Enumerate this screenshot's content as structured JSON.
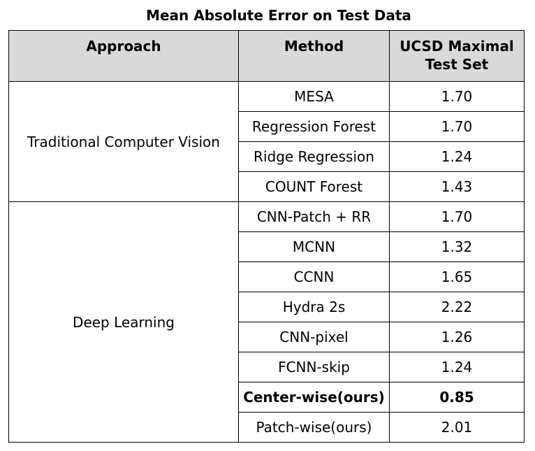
{
  "title": "Mean Absolute Error on Test Data",
  "headers": {
    "approach": "Approach",
    "method": "Method",
    "dataset_line1": "UCSD Maximal",
    "dataset_line2": "Test Set"
  },
  "groups": [
    {
      "approach": "Traditional Computer Vision",
      "rows": [
        {
          "method": "MESA",
          "value": "1.70"
        },
        {
          "method": "Regression Forest",
          "value": "1.70"
        },
        {
          "method": "Ridge Regression",
          "value": "1.24"
        },
        {
          "method": "COUNT Forest",
          "value": "1.43"
        }
      ]
    },
    {
      "approach": "Deep Learning",
      "rows": [
        {
          "method": "CNN-Patch + RR",
          "value": "1.70"
        },
        {
          "method": "MCNN",
          "value": "1.32"
        },
        {
          "method": "CCNN",
          "value": "1.65"
        },
        {
          "method": "Hydra 2s",
          "value": "2.22"
        },
        {
          "method": "CNN-pixel",
          "value": "1.26"
        },
        {
          "method": "FCNN-skip",
          "value": "1.24"
        },
        {
          "method": "Center-wise(ours)",
          "value": "0.85",
          "bold": true
        },
        {
          "method": "Patch-wise(ours)",
          "value": "2.01"
        }
      ]
    }
  ]
}
